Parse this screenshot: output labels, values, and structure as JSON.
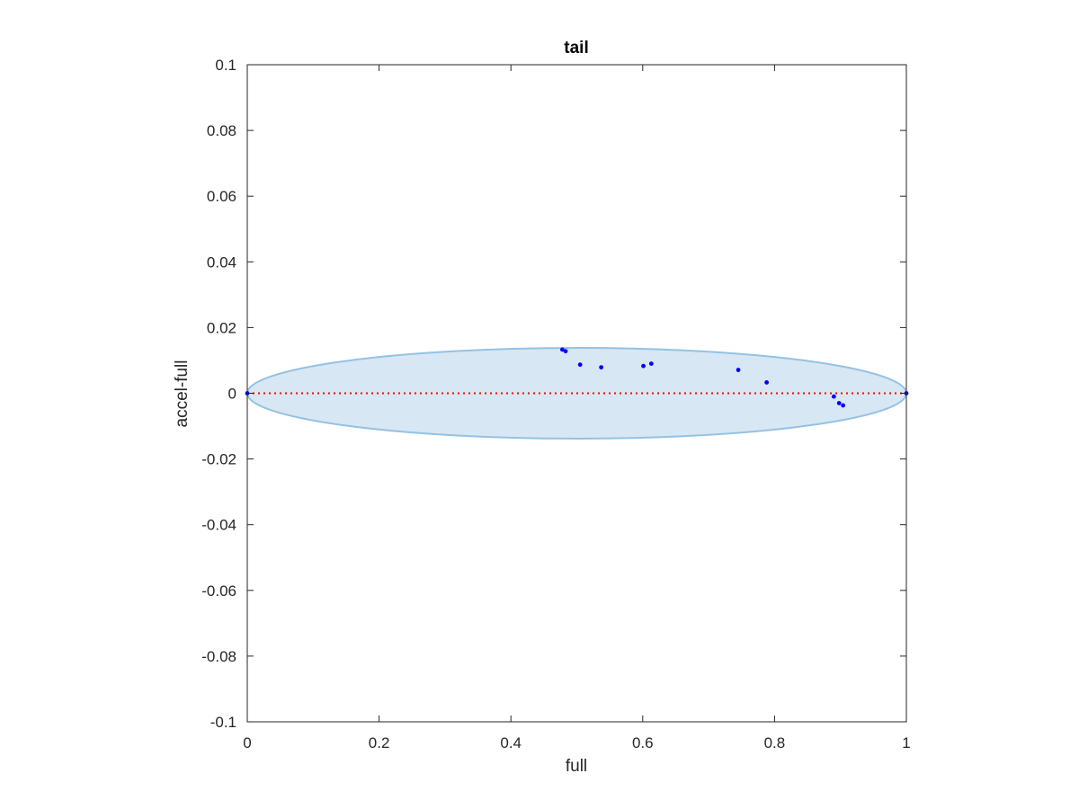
{
  "chart_data": {
    "type": "scatter",
    "title": "tail",
    "xlabel": "full",
    "ylabel": "accel-full",
    "xlim": [
      0,
      1
    ],
    "ylim": [
      -0.1,
      0.1
    ],
    "x_ticks": [
      0,
      0.2,
      0.4,
      0.6,
      0.8,
      1
    ],
    "x_tick_labels": [
      "0",
      "0.2",
      "0.4",
      "0.6",
      "0.8",
      "1"
    ],
    "y_ticks": [
      0.1,
      0.08,
      0.06,
      0.04,
      0.02,
      0,
      -0.02,
      -0.04,
      -0.06,
      -0.08,
      -0.1
    ],
    "y_tick_labels": [
      "0.1",
      "0.08",
      "0.06",
      "0.04",
      "0.02",
      "0",
      "-0.02",
      "-0.04",
      "-0.06",
      "-0.08",
      "-0.1"
    ],
    "grid": false,
    "points": [
      {
        "x": 0,
        "y": 0
      },
      {
        "x": 0.478,
        "y": 0.0133
      },
      {
        "x": 0.483,
        "y": 0.0128
      },
      {
        "x": 0.505,
        "y": 0.0087
      },
      {
        "x": 0.537,
        "y": 0.0079
      },
      {
        "x": 0.601,
        "y": 0.0083
      },
      {
        "x": 0.613,
        "y": 0.009
      },
      {
        "x": 0.745,
        "y": 0.0071
      },
      {
        "x": 0.788,
        "y": 0.0033
      },
      {
        "x": 0.89,
        "y": -0.001
      },
      {
        "x": 0.898,
        "y": -0.003
      },
      {
        "x": 0.904,
        "y": -0.0037
      },
      {
        "x": 1,
        "y": 0
      }
    ],
    "ellipse": {
      "cx": 0.5,
      "cy": 0,
      "rx": 0.5,
      "ry": 0.0138
    },
    "reference_line": {
      "y": 0,
      "x_from": 0,
      "x_to": 1
    },
    "colors": {
      "points": "#0000ff",
      "ellipse_fill": "#d8e7f4",
      "ellipse_edge": "#94c2e3",
      "reference_line": "#ff0000",
      "axes": "#262626"
    }
  }
}
